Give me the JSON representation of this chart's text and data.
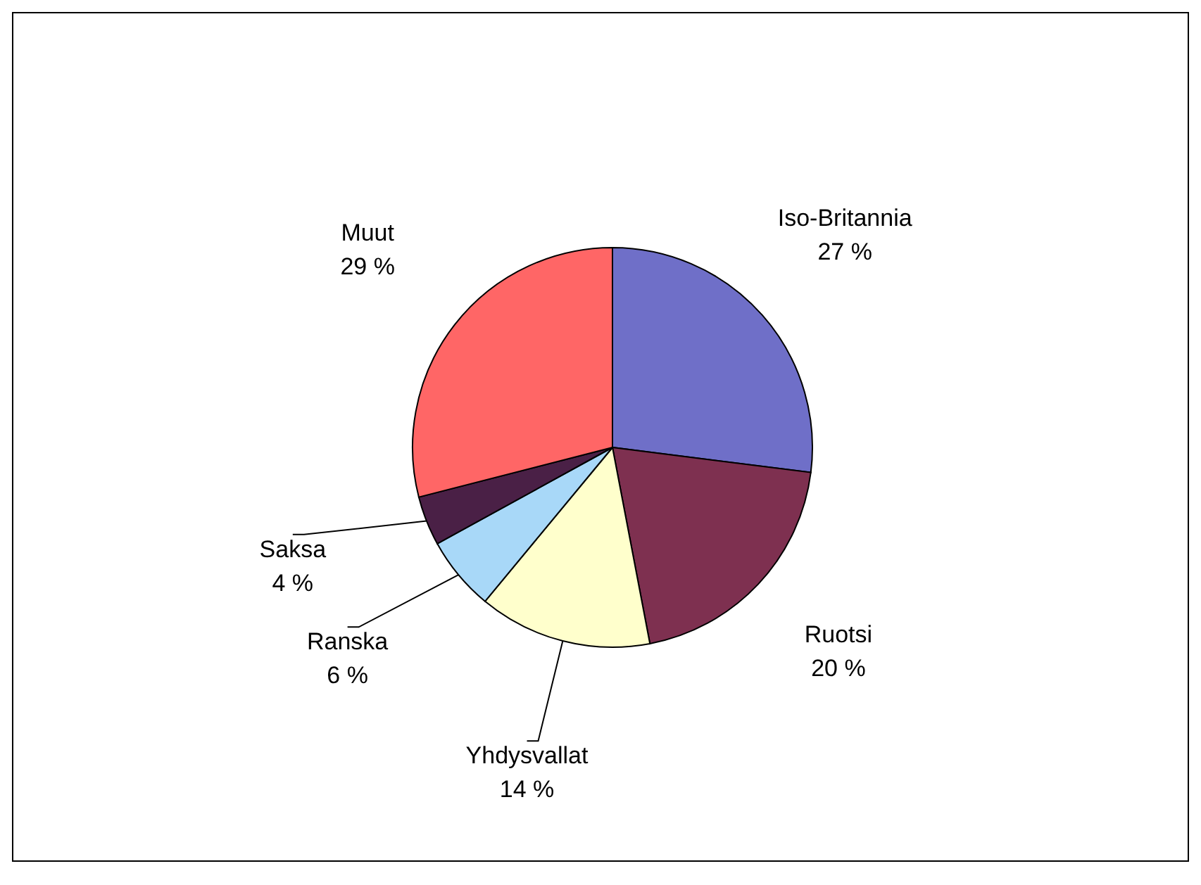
{
  "chart_data": {
    "type": "pie",
    "categories": [
      "Iso-Britannia",
      "Ruotsi",
      "Yhdysvallat",
      "Ranska",
      "Saksa",
      "Muut"
    ],
    "values": [
      27,
      20,
      14,
      6,
      4,
      29
    ],
    "value_labels": [
      "27 %",
      "20 %",
      "14 %",
      "6 %",
      "4 %",
      "29 %"
    ],
    "colors": [
      "#6f6fc8",
      "#7e3050",
      "#ffffcc",
      "#a8d8f8",
      "#4a2046",
      "#ff6666"
    ]
  }
}
